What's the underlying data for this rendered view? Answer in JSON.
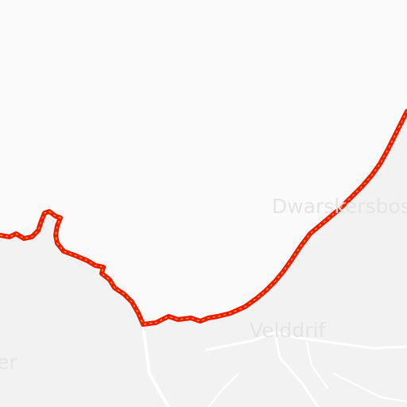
{
  "map": {
    "colors": {
      "water": "#fafafa",
      "land": "#f2f2f2",
      "roads": "#ffffff",
      "label": "#e4e4e4",
      "coastline_outer": "#ee1a00",
      "coastline_inner": "#f0c000"
    },
    "labels": {
      "dwarskersbos": "Dwarskersbos",
      "velddrif": "Velddrif",
      "partial_left": "er"
    }
  }
}
